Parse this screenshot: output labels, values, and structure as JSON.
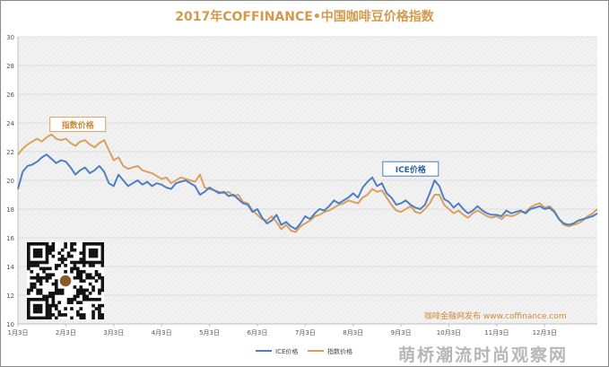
{
  "title": "2017年COFFINANCE•中国咖啡豆价格指数",
  "credit": "咖啡金融网发布 www.coffinance.com",
  "watermark": "萌桥潮流时尚观察网",
  "colors": {
    "ice": "#4f7ec2",
    "index": "#d8a25e",
    "title": "#d39a4c",
    "plot_bg": "#f2f2f2",
    "grid": "#d9d9d9"
  },
  "chart_data": {
    "type": "line",
    "title": "2017年COFFINANCE•中国咖啡豆价格指数",
    "ylim": [
      10,
      30
    ],
    "yticks": [
      10,
      12,
      14,
      16,
      18,
      20,
      22,
      24,
      26,
      28,
      30
    ],
    "xlim": [
      0,
      12.1
    ],
    "xticks": [
      {
        "pos": 0,
        "label": "1月3日"
      },
      {
        "pos": 1,
        "label": "2月3日"
      },
      {
        "pos": 2,
        "label": "3月3日"
      },
      {
        "pos": 3,
        "label": "4月3日"
      },
      {
        "pos": 4,
        "label": "5月3日"
      },
      {
        "pos": 5,
        "label": "6月3日"
      },
      {
        "pos": 6,
        "label": "7月3日"
      },
      {
        "pos": 7,
        "label": "8月3日"
      },
      {
        "pos": 8,
        "label": "9月3日"
      },
      {
        "pos": 9,
        "label": "10月3日"
      },
      {
        "pos": 10,
        "label": "11月3日"
      },
      {
        "pos": 11,
        "label": "12月3日"
      }
    ],
    "grid": true,
    "legend_position": "bottom",
    "annotations": [
      {
        "text": "指数价格",
        "series": "指数价格",
        "x": 1.25,
        "y": 23.9
      },
      {
        "text": "ICE价格",
        "series": "ICE价格",
        "x": 8.2,
        "y": 20.8
      }
    ],
    "series": [
      {
        "name": "ICE价格",
        "x": [
          0,
          0.1,
          0.2,
          0.3,
          0.4,
          0.5,
          0.6,
          0.7,
          0.8,
          0.9,
          1.0,
          1.1,
          1.2,
          1.3,
          1.4,
          1.5,
          1.6,
          1.7,
          1.8,
          1.9,
          2.0,
          2.1,
          2.2,
          2.3,
          2.4,
          2.5,
          2.6,
          2.7,
          2.8,
          2.9,
          3.0,
          3.1,
          3.2,
          3.3,
          3.4,
          3.5,
          3.6,
          3.7,
          3.8,
          3.9,
          4.0,
          4.1,
          4.2,
          4.3,
          4.4,
          4.5,
          4.6,
          4.7,
          4.8,
          4.9,
          5.0,
          5.1,
          5.2,
          5.3,
          5.4,
          5.5,
          5.6,
          5.7,
          5.8,
          5.9,
          6.0,
          6.1,
          6.2,
          6.3,
          6.4,
          6.5,
          6.6,
          6.7,
          6.8,
          6.9,
          7.0,
          7.1,
          7.2,
          7.3,
          7.4,
          7.5,
          7.6,
          7.7,
          7.8,
          7.9,
          8.0,
          8.1,
          8.2,
          8.3,
          8.4,
          8.5,
          8.6,
          8.7,
          8.8,
          8.9,
          9.0,
          9.1,
          9.2,
          9.3,
          9.4,
          9.5,
          9.6,
          9.7,
          9.8,
          9.9,
          10.0,
          10.1,
          10.2,
          10.3,
          10.4,
          10.5,
          10.6,
          10.7,
          10.8,
          10.9,
          11.0,
          11.1,
          11.2,
          11.3,
          11.4,
          11.5,
          11.6,
          11.7,
          11.8,
          11.9,
          12.0,
          12.1
        ],
        "values": [
          19.4,
          20.6,
          21.0,
          21.1,
          21.3,
          21.6,
          21.8,
          21.5,
          21.2,
          21.4,
          21.3,
          20.9,
          20.4,
          20.7,
          20.9,
          20.5,
          20.7,
          21.0,
          20.6,
          19.8,
          19.6,
          20.4,
          20.0,
          19.6,
          19.8,
          20.0,
          19.7,
          19.9,
          19.6,
          19.8,
          19.7,
          19.5,
          19.4,
          19.8,
          19.9,
          20.0,
          19.8,
          19.6,
          19.0,
          19.2,
          19.5,
          19.3,
          19.1,
          19.2,
          18.9,
          19.0,
          18.7,
          18.4,
          18.3,
          17.8,
          18.0,
          17.4,
          17.0,
          17.2,
          17.6,
          16.9,
          17.1,
          16.8,
          16.6,
          17.0,
          17.5,
          17.3,
          17.7,
          18.0,
          17.9,
          18.2,
          18.6,
          18.4,
          18.6,
          18.8,
          19.1,
          18.8,
          19.5,
          19.9,
          20.2,
          19.6,
          19.8,
          19.1,
          18.8,
          18.3,
          18.4,
          18.6,
          18.3,
          18.1,
          18.0,
          18.3,
          19.1,
          20.0,
          19.6,
          18.7,
          18.5,
          18.1,
          18.4,
          18.0,
          17.7,
          17.9,
          18.2,
          17.9,
          17.7,
          17.6,
          17.6,
          17.5,
          17.9,
          17.7,
          17.8,
          17.9,
          17.7,
          18.0,
          18.1,
          18.2,
          18.0,
          18.1,
          17.8,
          17.3,
          17.0,
          16.9,
          17.0,
          17.2,
          17.3,
          17.4,
          17.5,
          17.7
        ]
      },
      {
        "name": "指数价格",
        "x": [
          0,
          0.1,
          0.2,
          0.3,
          0.4,
          0.5,
          0.6,
          0.7,
          0.8,
          0.9,
          1.0,
          1.1,
          1.2,
          1.3,
          1.4,
          1.5,
          1.6,
          1.7,
          1.8,
          1.9,
          2.0,
          2.1,
          2.2,
          2.3,
          2.4,
          2.5,
          2.6,
          2.7,
          2.8,
          2.9,
          3.0,
          3.1,
          3.2,
          3.3,
          3.4,
          3.5,
          3.6,
          3.7,
          3.8,
          3.9,
          4.0,
          4.1,
          4.2,
          4.3,
          4.4,
          4.5,
          4.6,
          4.7,
          4.8,
          4.9,
          5.0,
          5.1,
          5.2,
          5.3,
          5.4,
          5.5,
          5.6,
          5.7,
          5.8,
          5.9,
          6.0,
          6.1,
          6.2,
          6.3,
          6.4,
          6.5,
          6.6,
          6.7,
          6.8,
          6.9,
          7.0,
          7.1,
          7.2,
          7.3,
          7.4,
          7.5,
          7.6,
          7.7,
          7.8,
          7.9,
          8.0,
          8.1,
          8.2,
          8.3,
          8.4,
          8.5,
          8.6,
          8.7,
          8.8,
          8.9,
          9.0,
          9.1,
          9.2,
          9.3,
          9.4,
          9.5,
          9.6,
          9.7,
          9.8,
          9.9,
          10.0,
          10.1,
          10.2,
          10.3,
          10.4,
          10.5,
          10.6,
          10.7,
          10.8,
          10.9,
          11.0,
          11.1,
          11.2,
          11.3,
          11.4,
          11.5,
          11.6,
          11.7,
          11.8,
          11.9,
          12.0,
          12.1
        ],
        "values": [
          21.8,
          22.2,
          22.5,
          22.7,
          22.9,
          22.7,
          23.0,
          23.2,
          22.9,
          22.8,
          22.9,
          22.6,
          22.4,
          22.7,
          22.8,
          22.5,
          22.3,
          22.6,
          22.8,
          22.1,
          21.4,
          21.6,
          21.0,
          20.8,
          20.9,
          21.0,
          20.7,
          20.6,
          20.5,
          20.3,
          20.1,
          20.2,
          19.8,
          20.0,
          20.2,
          20.1,
          20.0,
          19.9,
          20.4,
          19.5,
          19.4,
          19.3,
          19.2,
          19.1,
          19.2,
          18.9,
          19.0,
          18.5,
          18.4,
          17.9,
          17.6,
          17.3,
          17.2,
          17.5,
          17.1,
          16.6,
          16.9,
          16.5,
          16.4,
          16.8,
          17.0,
          17.2,
          17.5,
          17.6,
          17.8,
          17.9,
          18.1,
          18.3,
          18.4,
          18.6,
          18.5,
          18.4,
          18.8,
          19.0,
          19.4,
          19.2,
          19.3,
          18.8,
          18.3,
          17.9,
          17.8,
          18.0,
          18.2,
          17.8,
          17.7,
          18.0,
          18.4,
          19.0,
          19.0,
          18.3,
          18.0,
          17.7,
          17.9,
          17.6,
          17.4,
          17.7,
          17.9,
          17.7,
          17.5,
          17.4,
          17.5,
          17.3,
          17.6,
          17.5,
          17.6,
          17.8,
          17.8,
          18.1,
          18.3,
          18.4,
          18.1,
          18.2,
          17.9,
          17.3,
          16.9,
          16.8,
          16.9,
          17.0,
          17.2,
          17.5,
          17.7,
          18.0
        ]
      }
    ]
  }
}
